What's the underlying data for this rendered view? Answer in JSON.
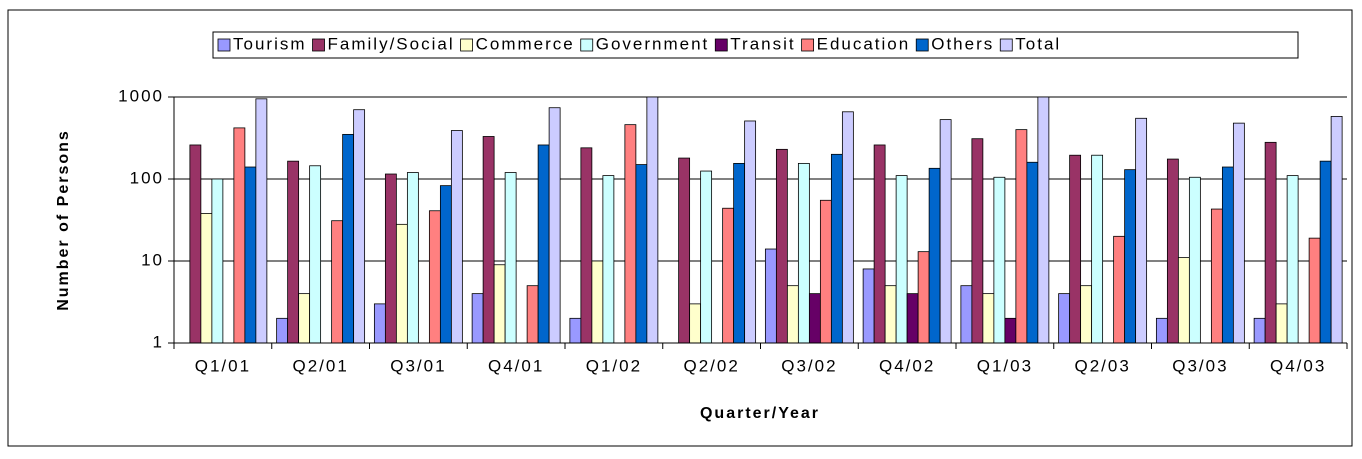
{
  "chart_data": {
    "type": "bar",
    "log_scale": true,
    "grid": true,
    "legend": "top",
    "x_label": "Quarter/Year",
    "y_label": "Number of Persons",
    "categories": [
      "Q1/01",
      "Q2/01",
      "Q3/01",
      "Q4/01",
      "Q1/02",
      "Q2/02",
      "Q3/02",
      "Q4/02",
      "Q1/03",
      "Q2/03",
      "Q3/03",
      "Q4/03"
    ],
    "ylim": [
      1,
      1000
    ],
    "yticks": [
      1,
      10,
      100,
      1000
    ],
    "series": [
      {
        "name": "Tourism",
        "color": "#9999ff",
        "values": [
          null,
          2,
          3,
          4,
          2,
          null,
          14,
          8,
          5,
          4,
          2,
          2
        ]
      },
      {
        "name": "Family/Social",
        "color": "#993366",
        "values": [
          260,
          165,
          115,
          330,
          240,
          180,
          230,
          260,
          310,
          195,
          175,
          280
        ]
      },
      {
        "name": "Commerce",
        "color": "#ffffcc",
        "values": [
          38,
          4,
          28,
          9,
          10,
          3,
          5,
          5,
          4,
          5,
          11,
          3
        ]
      },
      {
        "name": "Government",
        "color": "#ccffff",
        "values": [
          100,
          145,
          120,
          120,
          110,
          125,
          155,
          110,
          105,
          195,
          105,
          110
        ]
      },
      {
        "name": "Transit",
        "color": "#660066",
        "values": [
          null,
          null,
          null,
          null,
          null,
          null,
          4,
          4,
          2,
          null,
          null,
          null
        ]
      },
      {
        "name": "Education",
        "color": "#ff8080",
        "values": [
          420,
          31,
          41,
          5,
          460,
          44,
          55,
          13,
          400,
          20,
          43,
          19
        ]
      },
      {
        "name": "Others",
        "color": "#0066cc",
        "values": [
          140,
          350,
          83,
          260,
          150,
          155,
          200,
          135,
          160,
          130,
          140,
          165
        ]
      },
      {
        "name": "Total",
        "color": "#ccccff",
        "values": [
          950,
          700,
          390,
          740,
          1000,
          510,
          660,
          530,
          1000,
          550,
          480,
          580
        ]
      }
    ]
  }
}
